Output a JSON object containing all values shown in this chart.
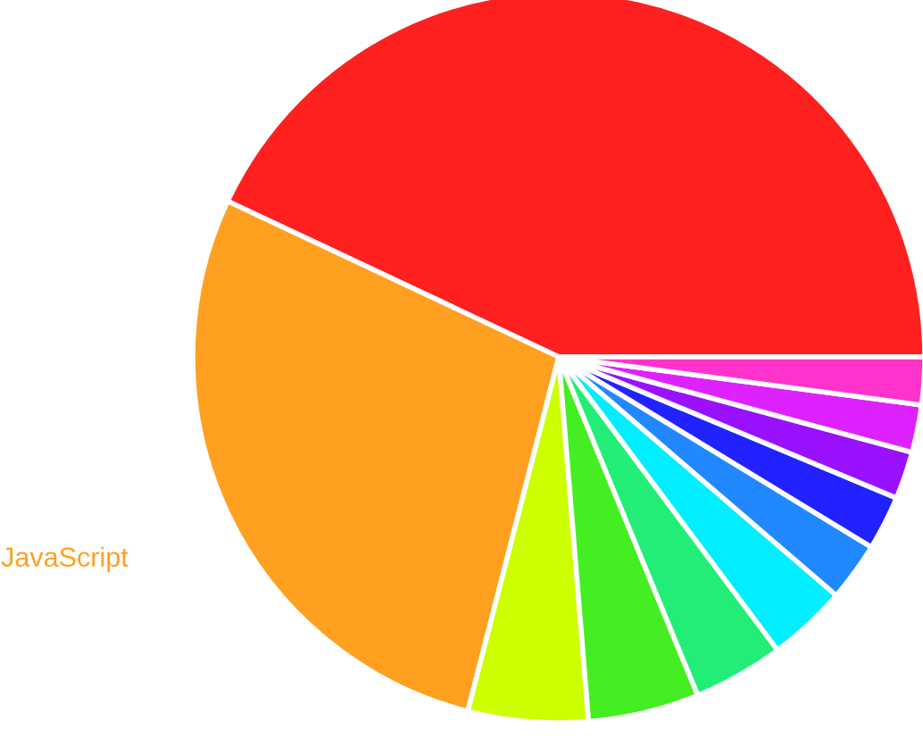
{
  "chart_data": {
    "type": "pie",
    "categories": [
      null,
      "JavaScript",
      null,
      null,
      null,
      null,
      null,
      null,
      null,
      null,
      null
    ],
    "values": [
      43,
      28,
      5.3,
      4.9,
      4,
      3.5,
      2.6,
      2.4,
      2.1,
      2.1,
      2.1
    ],
    "colors": [
      "#ff2020",
      "#ffa020",
      "#ccff00",
      "#44ee22",
      "#22ee77",
      "#00eeff",
      "#2288ff",
      "#2222ff",
      "#9911ff",
      "#dd22ff",
      "#ff33cc"
    ]
  }
}
